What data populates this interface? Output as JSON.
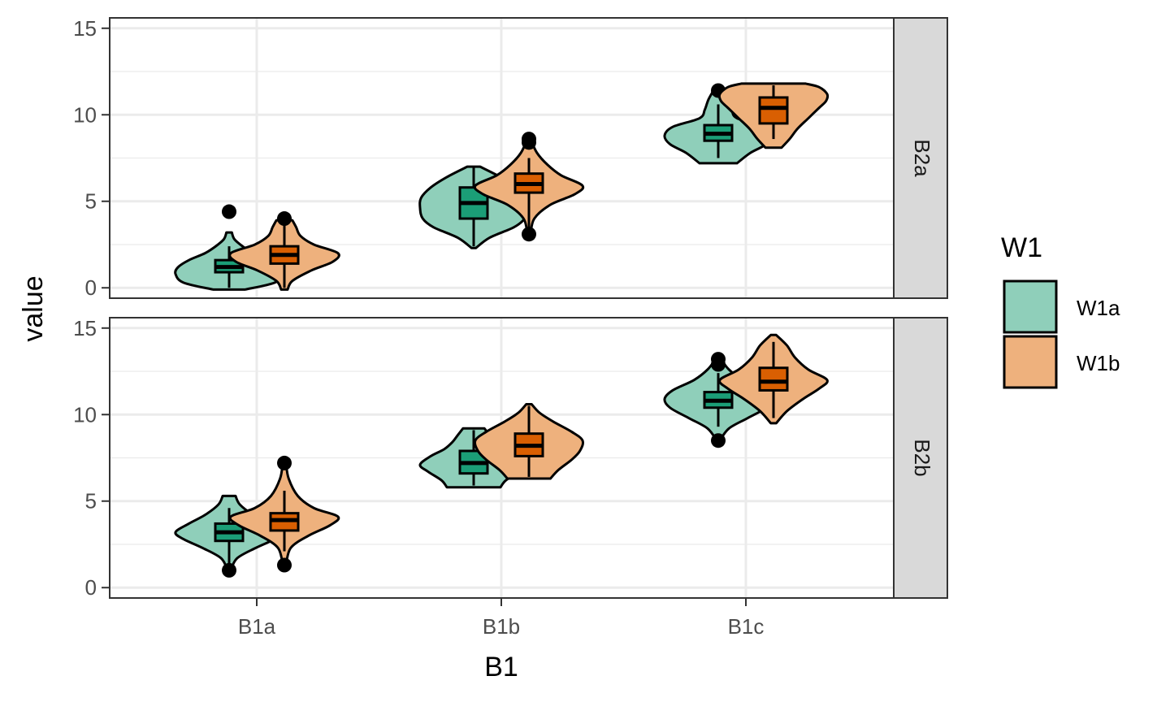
{
  "chart_data": {
    "type": "violin",
    "xlabel": "B1",
    "ylabel": "value",
    "categories": [
      "B1a",
      "B1b",
      "B1c"
    ],
    "ylim": [
      -0.6,
      15.6
    ],
    "yticks": [
      0,
      5,
      10,
      15
    ],
    "grid": true,
    "legend": {
      "title": "W1",
      "placement": "right",
      "entries": [
        {
          "name": "W1a",
          "fill": "#8FCFBA",
          "box": "#1B9E77"
        },
        {
          "name": "W1b",
          "fill": "#EEB17D",
          "box": "#D95F02"
        }
      ]
    },
    "facets": [
      {
        "label": "B2a",
        "groups": [
          {
            "category": "B1a",
            "series": "W1a",
            "q1": 0.9,
            "median": 1.2,
            "q3": 1.6,
            "whisker_low": 0.0,
            "whisker_high": 2.4,
            "outliers": [
              4.4
            ],
            "violin_min": -0.1,
            "violin_max": 3.2,
            "violin_ys": [
              -0.1,
              0.3,
              0.8,
              1.2,
              1.6,
              2.0,
              2.4,
              2.8,
              3.2
            ],
            "violin_widths": [
              0.3,
              0.85,
              1.0,
              0.95,
              0.75,
              0.45,
              0.25,
              0.1,
              0.05
            ]
          },
          {
            "category": "B1a",
            "series": "W1b",
            "q1": 1.4,
            "median": 1.9,
            "q3": 2.4,
            "whisker_low": 0.0,
            "whisker_high": 3.9,
            "outliers": [
              4.0
            ],
            "violin_min": -0.1,
            "violin_max": 3.9,
            "violin_ys": [
              -0.1,
              0.4,
              1.0,
              1.5,
              2.0,
              2.5,
              3.0,
              3.5,
              3.9
            ],
            "violin_widths": [
              0.06,
              0.15,
              0.5,
              0.9,
              1.0,
              0.55,
              0.3,
              0.22,
              0.15
            ]
          },
          {
            "category": "B1b",
            "series": "W1a",
            "q1": 4.0,
            "median": 4.9,
            "q3": 5.8,
            "whisker_low": 2.4,
            "whisker_high": 7.0,
            "outliers": [],
            "violin_min": 2.3,
            "violin_max": 7.0,
            "violin_ys": [
              2.3,
              2.9,
              3.5,
              4.0,
              4.6,
              5.2,
              5.8,
              6.4,
              7.0
            ],
            "violin_widths": [
              0.04,
              0.3,
              0.75,
              0.95,
              1.0,
              0.98,
              0.8,
              0.5,
              0.12
            ]
          },
          {
            "category": "B1b",
            "series": "W1b",
            "q1": 5.5,
            "median": 6.0,
            "q3": 6.6,
            "whisker_low": 3.5,
            "whisker_high": 7.5,
            "outliers": [
              3.1,
              8.4,
              8.6
            ],
            "violin_min": 3.1,
            "violin_max": 8.6,
            "violin_ys": [
              3.1,
              4.0,
              4.8,
              5.4,
              5.9,
              6.5,
              7.1,
              7.8,
              8.6
            ],
            "violin_widths": [
              0.03,
              0.1,
              0.4,
              0.85,
              1.0,
              0.6,
              0.35,
              0.15,
              0.03
            ]
          },
          {
            "category": "B1c",
            "series": "W1a",
            "q1": 8.5,
            "median": 8.9,
            "q3": 9.4,
            "whisker_low": 7.5,
            "whisker_high": 10.6,
            "outliers": [
              11.4
            ],
            "violin_min": 7.2,
            "violin_max": 11.6,
            "violin_ys": [
              7.2,
              7.8,
              8.3,
              8.8,
              9.3,
              9.8,
              10.3,
              10.9,
              11.6
            ],
            "violin_widths": [
              0.35,
              0.6,
              0.9,
              1.0,
              0.85,
              0.35,
              0.25,
              0.18,
              0.05
            ]
          },
          {
            "category": "B1c",
            "series": "W1b",
            "q1": 9.5,
            "median": 10.4,
            "q3": 11.0,
            "whisker_low": 8.6,
            "whisker_high": 11.7,
            "outliers": [],
            "violin_min": 8.1,
            "violin_max": 11.8,
            "violin_ys": [
              8.1,
              8.6,
              9.2,
              9.8,
              10.4,
              10.8,
              11.2,
              11.6,
              11.8
            ],
            "violin_widths": [
              0.15,
              0.3,
              0.45,
              0.65,
              0.85,
              0.98,
              1.0,
              0.85,
              0.6
            ]
          }
        ]
      },
      {
        "label": "B2b",
        "groups": [
          {
            "category": "B1a",
            "series": "W1a",
            "q1": 2.7,
            "median": 3.2,
            "q3": 3.7,
            "whisker_low": 1.4,
            "whisker_high": 4.6,
            "outliers": [
              1.0
            ],
            "violin_min": 1.0,
            "violin_max": 5.3,
            "violin_ys": [
              1.0,
              1.7,
              2.3,
              2.8,
              3.2,
              3.7,
              4.2,
              4.8,
              5.3
            ],
            "violin_widths": [
              0.03,
              0.15,
              0.5,
              0.85,
              1.0,
              0.75,
              0.45,
              0.2,
              0.12
            ]
          },
          {
            "category": "B1a",
            "series": "W1b",
            "q1": 3.3,
            "median": 3.9,
            "q3": 4.3,
            "whisker_low": 2.1,
            "whisker_high": 5.6,
            "outliers": [
              1.3,
              7.2
            ],
            "violin_min": 1.3,
            "violin_max": 7.2,
            "violin_ys": [
              1.3,
              2.3,
              3.0,
              3.6,
              4.1,
              4.6,
              5.3,
              6.3,
              7.2
            ],
            "violin_widths": [
              0.03,
              0.12,
              0.45,
              0.85,
              1.0,
              0.55,
              0.25,
              0.08,
              0.03
            ]
          },
          {
            "category": "B1b",
            "series": "W1a",
            "q1": 6.6,
            "median": 7.2,
            "q3": 7.9,
            "whisker_low": 5.9,
            "whisker_high": 9.1,
            "outliers": [],
            "violin_min": 5.8,
            "violin_max": 9.2,
            "violin_ys": [
              5.8,
              6.2,
              6.7,
              7.1,
              7.6,
              8.0,
              8.4,
              8.8,
              9.2
            ],
            "violin_widths": [
              0.5,
              0.6,
              0.85,
              1.0,
              0.8,
              0.55,
              0.4,
              0.3,
              0.2
            ]
          },
          {
            "category": "B1b",
            "series": "W1b",
            "q1": 7.6,
            "median": 8.2,
            "q3": 8.9,
            "whisker_low": 6.4,
            "whisker_high": 10.5,
            "outliers": [],
            "violin_min": 6.3,
            "violin_max": 10.6,
            "violin_ys": [
              6.3,
              6.8,
              7.4,
              7.9,
              8.5,
              9.0,
              9.6,
              10.1,
              10.6
            ],
            "violin_widths": [
              0.4,
              0.55,
              0.8,
              0.95,
              1.0,
              0.8,
              0.45,
              0.2,
              0.05
            ]
          },
          {
            "category": "B1c",
            "series": "W1a",
            "q1": 10.4,
            "median": 10.8,
            "q3": 11.3,
            "whisker_low": 9.3,
            "whisker_high": 12.4,
            "outliers": [
              8.5,
              12.9,
              13.2
            ],
            "violin_min": 8.5,
            "violin_max": 13.2,
            "violin_ys": [
              8.5,
              9.2,
              9.8,
              10.4,
              10.9,
              11.4,
              12.0,
              12.6,
              13.2
            ],
            "violin_widths": [
              0.03,
              0.2,
              0.55,
              0.9,
              1.0,
              0.85,
              0.45,
              0.2,
              0.05
            ]
          },
          {
            "category": "B1c",
            "series": "W1b",
            "q1": 11.4,
            "median": 11.9,
            "q3": 12.7,
            "whisker_low": 9.8,
            "whisker_high": 14.2,
            "outliers": [],
            "violin_min": 9.5,
            "violin_max": 14.6,
            "violin_ys": [
              9.5,
              10.2,
              10.9,
              11.5,
              12.0,
              12.6,
              13.3,
              14.0,
              14.6
            ],
            "violin_widths": [
              0.05,
              0.25,
              0.55,
              0.85,
              1.0,
              0.65,
              0.4,
              0.25,
              0.05
            ]
          }
        ]
      }
    ]
  }
}
